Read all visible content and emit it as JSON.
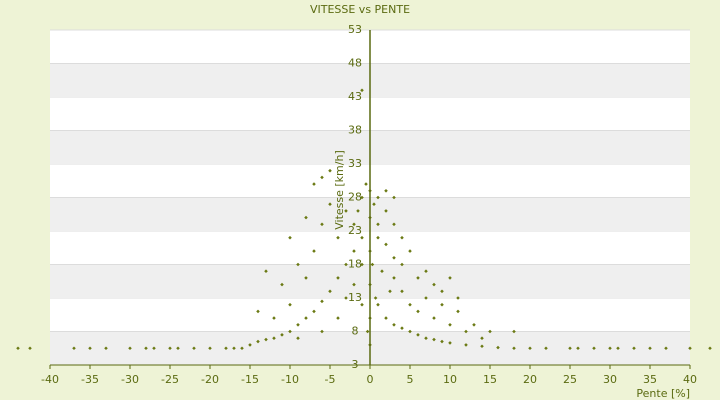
{
  "chart_data": {
    "type": "scatter",
    "title": "VITESSE vs PENTE",
    "x_label": "Pente [%]",
    "y_label": "Vitesse [km/h]",
    "xlim": [
      -40,
      40
    ],
    "xticks": [
      -40,
      -35,
      -30,
      -25,
      -20,
      -15,
      -10,
      -5,
      0,
      5,
      10,
      15,
      20,
      25,
      30,
      35,
      40
    ],
    "ylim": [
      3,
      53
    ],
    "yticks": [
      3,
      8,
      13,
      18,
      23,
      28,
      33,
      38,
      43,
      48,
      53
    ],
    "grid": true,
    "series": [
      {
        "name": "Vitesse",
        "color": "#6b7a14",
        "x": [
          -44,
          -42.5,
          -37,
          -35,
          -33,
          -30,
          -28,
          -27,
          -25,
          -24,
          -22,
          -20,
          -18,
          -17,
          -16,
          25,
          26,
          28,
          30,
          31,
          33,
          35,
          37,
          40,
          42.5,
          -15,
          -14,
          -13,
          -12,
          -11,
          -10,
          -9,
          -8,
          -7,
          -6,
          -5,
          -4,
          -3,
          -2,
          -1,
          -12,
          -10,
          -11,
          -9,
          -8,
          -7,
          -6,
          -5,
          -5,
          -6,
          -7,
          -8,
          -10,
          -13,
          -14,
          -4,
          -3,
          -2,
          -1,
          -3,
          -4,
          -6,
          -9,
          -2,
          -1,
          0,
          0,
          0,
          0,
          0,
          0,
          0.5,
          1,
          1,
          1,
          2,
          2,
          3,
          3,
          4,
          -0.5,
          -1.5,
          0.3,
          0.7,
          -0.3,
          1.5,
          2.5,
          -1,
          -1,
          1,
          2,
          3,
          4,
          5,
          6,
          7,
          8,
          9,
          10,
          12,
          14,
          16,
          18,
          20,
          22,
          3,
          4,
          5,
          6,
          7,
          8,
          9,
          10,
          11,
          12,
          13,
          14,
          15,
          18,
          4,
          5,
          6,
          7,
          8,
          9,
          10,
          11,
          3,
          2
        ],
        "values": [
          5.5,
          5.5,
          5.5,
          5.5,
          5.5,
          5.5,
          5.5,
          5.5,
          5.5,
          5.5,
          5.5,
          5.5,
          5.5,
          5.5,
          5.5,
          5.5,
          5.5,
          5.5,
          5.5,
          5.5,
          5.5,
          5.5,
          5.5,
          5.5,
          5.5,
          6,
          6.5,
          6.8,
          7,
          7.5,
          8,
          9,
          10,
          11,
          12.5,
          14,
          16,
          18,
          20,
          22,
          10,
          12,
          15,
          18,
          16,
          20,
          24,
          27,
          32,
          31,
          30,
          25,
          22,
          17,
          11,
          22,
          26,
          24,
          28,
          13,
          10,
          8,
          7,
          15,
          12,
          29,
          25,
          20,
          15,
          10,
          6,
          27,
          28,
          24,
          22,
          26,
          21,
          24,
          19,
          22,
          30,
          26,
          18,
          13,
          8,
          17,
          14,
          18,
          44,
          12,
          10,
          9,
          8.5,
          8,
          7.5,
          7,
          6.8,
          6.5,
          6.3,
          6,
          5.8,
          5.6,
          5.5,
          5.5,
          5.5,
          16,
          14,
          12,
          11,
          13,
          10,
          12,
          9,
          11,
          8,
          9,
          7,
          8,
          8,
          18,
          20,
          16,
          17,
          15,
          14,
          16,
          13,
          28,
          29
        ]
      }
    ]
  }
}
